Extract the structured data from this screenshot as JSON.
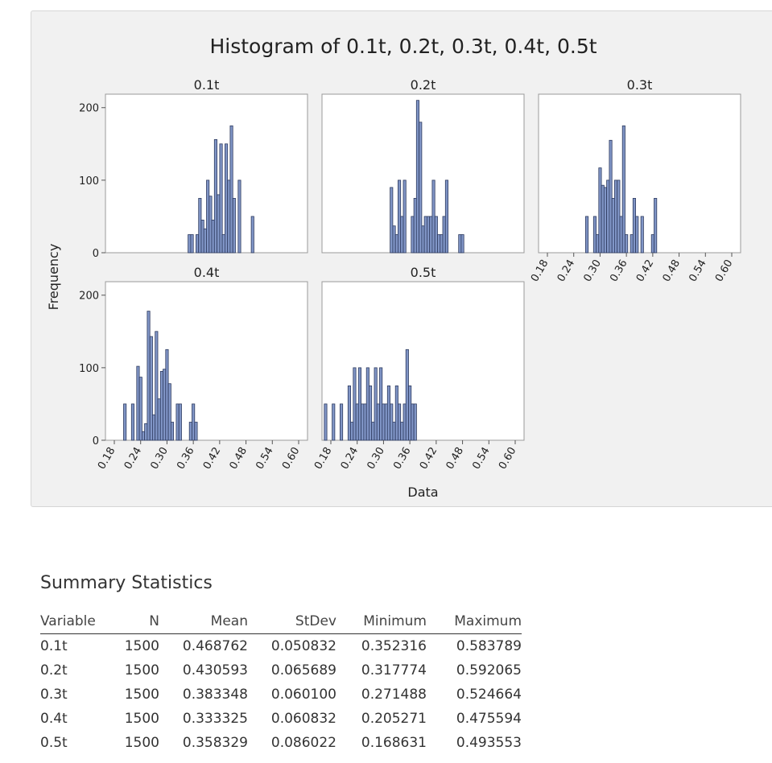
{
  "chart_data": {
    "type": "bar",
    "title": "Histogram of 0.1t, 0.2t, 0.3t, 0.4t, 0.5t",
    "xlabel": "Data",
    "ylabel": "Frequency",
    "xlim": [
      0.18,
      0.6
    ],
    "ylim": [
      0,
      200
    ],
    "xticks": [
      "0.18",
      "0.24",
      "0.30",
      "0.36",
      "0.42",
      "0.48",
      "0.54",
      "0.60"
    ],
    "yticks": [
      "0",
      "100",
      "200"
    ],
    "bin_width": 0.006,
    "panels": [
      {
        "name": "0.1t",
        "bins": [
          {
            "x": 0.351,
            "value": 25
          },
          {
            "x": 0.357,
            "value": 25
          },
          {
            "x": 0.369,
            "value": 25
          },
          {
            "x": 0.375,
            "value": 75
          },
          {
            "x": 0.381,
            "value": 45
          },
          {
            "x": 0.387,
            "value": 33
          },
          {
            "x": 0.393,
            "value": 100
          },
          {
            "x": 0.399,
            "value": 78
          },
          {
            "x": 0.405,
            "value": 45
          },
          {
            "x": 0.411,
            "value": 156
          },
          {
            "x": 0.417,
            "value": 80
          },
          {
            "x": 0.423,
            "value": 150
          },
          {
            "x": 0.429,
            "value": 25
          },
          {
            "x": 0.435,
            "value": 150
          },
          {
            "x": 0.441,
            "value": 100
          },
          {
            "x": 0.447,
            "value": 175
          },
          {
            "x": 0.453,
            "value": 75
          },
          {
            "x": 0.465,
            "value": 100
          },
          {
            "x": 0.495,
            "value": 50
          }
        ]
      },
      {
        "name": "0.2t",
        "bins": [
          {
            "x": 0.318,
            "value": 90
          },
          {
            "x": 0.324,
            "value": 37
          },
          {
            "x": 0.33,
            "value": 25
          },
          {
            "x": 0.336,
            "value": 100
          },
          {
            "x": 0.342,
            "value": 50
          },
          {
            "x": 0.348,
            "value": 100
          },
          {
            "x": 0.366,
            "value": 50
          },
          {
            "x": 0.372,
            "value": 75
          },
          {
            "x": 0.378,
            "value": 210
          },
          {
            "x": 0.384,
            "value": 180
          },
          {
            "x": 0.39,
            "value": 37
          },
          {
            "x": 0.396,
            "value": 50
          },
          {
            "x": 0.402,
            "value": 50
          },
          {
            "x": 0.408,
            "value": 50
          },
          {
            "x": 0.414,
            "value": 100
          },
          {
            "x": 0.42,
            "value": 50
          },
          {
            "x": 0.426,
            "value": 25
          },
          {
            "x": 0.432,
            "value": 25
          },
          {
            "x": 0.438,
            "value": 50
          },
          {
            "x": 0.444,
            "value": 100
          },
          {
            "x": 0.474,
            "value": 25
          },
          {
            "x": 0.48,
            "value": 25
          }
        ]
      },
      {
        "name": "0.3t",
        "bins": [
          {
            "x": 0.27,
            "value": 50
          },
          {
            "x": 0.288,
            "value": 50
          },
          {
            "x": 0.294,
            "value": 25
          },
          {
            "x": 0.3,
            "value": 117
          },
          {
            "x": 0.306,
            "value": 93
          },
          {
            "x": 0.312,
            "value": 90
          },
          {
            "x": 0.318,
            "value": 100
          },
          {
            "x": 0.324,
            "value": 155
          },
          {
            "x": 0.33,
            "value": 75
          },
          {
            "x": 0.336,
            "value": 100
          },
          {
            "x": 0.342,
            "value": 100
          },
          {
            "x": 0.348,
            "value": 50
          },
          {
            "x": 0.354,
            "value": 175
          },
          {
            "x": 0.36,
            "value": 25
          },
          {
            "x": 0.372,
            "value": 25
          },
          {
            "x": 0.378,
            "value": 75
          },
          {
            "x": 0.384,
            "value": 50
          },
          {
            "x": 0.396,
            "value": 50
          },
          {
            "x": 0.42,
            "value": 25
          },
          {
            "x": 0.426,
            "value": 75
          }
        ]
      },
      {
        "name": "0.4t",
        "bins": [
          {
            "x": 0.204,
            "value": 50
          },
          {
            "x": 0.222,
            "value": 50
          },
          {
            "x": 0.234,
            "value": 102
          },
          {
            "x": 0.24,
            "value": 87
          },
          {
            "x": 0.246,
            "value": 12
          },
          {
            "x": 0.252,
            "value": 23
          },
          {
            "x": 0.258,
            "value": 178
          },
          {
            "x": 0.264,
            "value": 143
          },
          {
            "x": 0.27,
            "value": 35
          },
          {
            "x": 0.276,
            "value": 150
          },
          {
            "x": 0.282,
            "value": 57
          },
          {
            "x": 0.288,
            "value": 95
          },
          {
            "x": 0.294,
            "value": 98
          },
          {
            "x": 0.3,
            "value": 125
          },
          {
            "x": 0.306,
            "value": 78
          },
          {
            "x": 0.312,
            "value": 25
          },
          {
            "x": 0.324,
            "value": 50
          },
          {
            "x": 0.33,
            "value": 50
          },
          {
            "x": 0.354,
            "value": 25
          },
          {
            "x": 0.36,
            "value": 50
          },
          {
            "x": 0.366,
            "value": 25
          }
        ]
      },
      {
        "name": "0.5t",
        "bins": [
          {
            "x": 0.168,
            "value": 50
          },
          {
            "x": 0.186,
            "value": 50
          },
          {
            "x": 0.204,
            "value": 50
          },
          {
            "x": 0.222,
            "value": 75
          },
          {
            "x": 0.228,
            "value": 25
          },
          {
            "x": 0.234,
            "value": 100
          },
          {
            "x": 0.24,
            "value": 50
          },
          {
            "x": 0.246,
            "value": 100
          },
          {
            "x": 0.252,
            "value": 50
          },
          {
            "x": 0.258,
            "value": 50
          },
          {
            "x": 0.264,
            "value": 100
          },
          {
            "x": 0.27,
            "value": 75
          },
          {
            "x": 0.276,
            "value": 25
          },
          {
            "x": 0.282,
            "value": 100
          },
          {
            "x": 0.288,
            "value": 50
          },
          {
            "x": 0.294,
            "value": 100
          },
          {
            "x": 0.3,
            "value": 50
          },
          {
            "x": 0.306,
            "value": 50
          },
          {
            "x": 0.312,
            "value": 75
          },
          {
            "x": 0.318,
            "value": 50
          },
          {
            "x": 0.324,
            "value": 25
          },
          {
            "x": 0.33,
            "value": 75
          },
          {
            "x": 0.336,
            "value": 50
          },
          {
            "x": 0.342,
            "value": 25
          },
          {
            "x": 0.348,
            "value": 50
          },
          {
            "x": 0.354,
            "value": 125
          },
          {
            "x": 0.36,
            "value": 75
          },
          {
            "x": 0.366,
            "value": 50
          },
          {
            "x": 0.372,
            "value": 50
          }
        ]
      }
    ],
    "colors": {
      "bar_fill": "#8095c6",
      "bar_stroke": "#2e3b5f",
      "panel_bg": "#ffffff",
      "frame": "#9a9a9a"
    }
  },
  "summary": {
    "title": "Summary Statistics",
    "columns": [
      "Variable",
      "N",
      "Mean",
      "StDev",
      "Minimum",
      "Maximum"
    ],
    "rows": [
      [
        "0.1t",
        "1500",
        "0.468762",
        "0.050832",
        "0.352316",
        "0.583789"
      ],
      [
        "0.2t",
        "1500",
        "0.430593",
        "0.065689",
        "0.317774",
        "0.592065"
      ],
      [
        "0.3t",
        "1500",
        "0.383348",
        "0.060100",
        "0.271488",
        "0.524664"
      ],
      [
        "0.4t",
        "1500",
        "0.333325",
        "0.060832",
        "0.205271",
        "0.475594"
      ],
      [
        "0.5t",
        "1500",
        "0.358329",
        "0.086022",
        "0.168631",
        "0.493553"
      ]
    ]
  }
}
